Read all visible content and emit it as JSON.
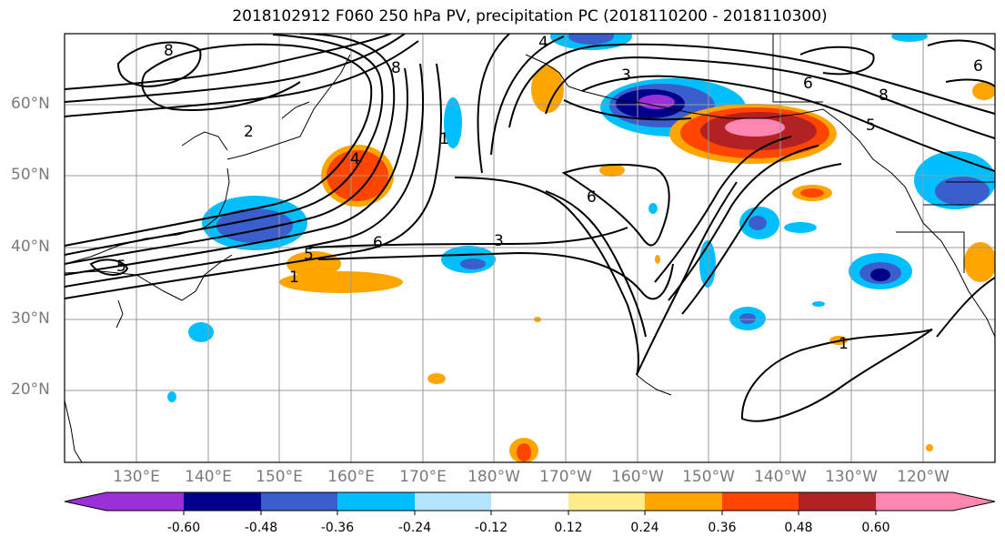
{
  "title": "2018102912 F060 250 hPa PV, precipitation PC (2018110200 - 2018110300)",
  "lat_labels": [
    "60°N",
    "50°N",
    "40°N",
    "30°N",
    "20°N"
  ],
  "lon_labels": [
    "130°E",
    "140°E",
    "150°E",
    "160°E",
    "170°E",
    "180°W",
    "170°W",
    "160°W",
    "150°W",
    "140°W",
    "130°W",
    "120°W"
  ],
  "contour_labels": [
    "8",
    "4",
    "8",
    "6",
    "8",
    "5",
    "6",
    "2",
    "1",
    "4",
    "3",
    "6",
    "6",
    "3",
    "5",
    "5",
    "1",
    "1"
  ],
  "colorbar": {
    "colors": [
      "#9b30d9",
      "#00008b",
      "#3a5fcd",
      "#00bfff",
      "#b3e5ff",
      "#ffffff",
      "#ffeb8a",
      "#ffa500",
      "#ff4500",
      "#b22222",
      "#ff85b3"
    ],
    "labels": [
      "-0.60",
      "-0.48",
      "-0.36",
      "-0.24",
      "-0.12",
      "0.12",
      "0.24",
      "0.36",
      "0.48",
      "0.60"
    ]
  }
}
